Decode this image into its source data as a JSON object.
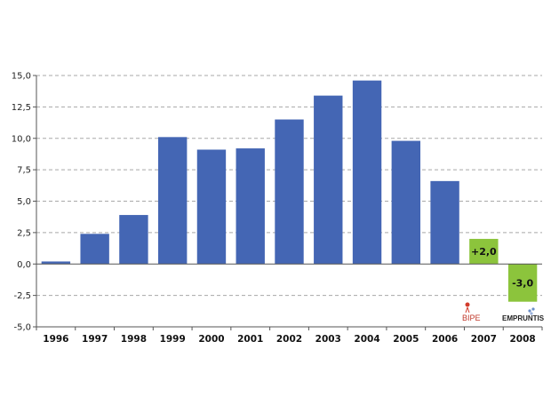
{
  "chart_data": {
    "type": "bar",
    "title": "",
    "xlabel": "",
    "ylabel": "",
    "ylim": [
      -5,
      15
    ],
    "yticks": [
      "-5,0",
      "-2,5",
      "0,0",
      "2,5",
      "5,0",
      "7,5",
      "10,0",
      "12,5",
      "15,0"
    ],
    "grid": true,
    "categories": [
      "1996",
      "1997",
      "1998",
      "1999",
      "2000",
      "2001",
      "2002",
      "2003",
      "2004",
      "2005",
      "2006",
      "2007",
      "2008"
    ],
    "values": [
      0.2,
      2.4,
      3.9,
      10.1,
      9.1,
      9.2,
      11.5,
      13.4,
      14.6,
      9.8,
      6.6,
      2.0,
      -3.0
    ],
    "bar_colors": [
      "#4466b4",
      "#4466b4",
      "#4466b4",
      "#4466b4",
      "#4466b4",
      "#4466b4",
      "#4466b4",
      "#4466b4",
      "#4466b4",
      "#4466b4",
      "#4466b4",
      "#8cc43c",
      "#8cc43c"
    ],
    "data_labels": [
      "",
      "",
      "",
      "",
      "",
      "",
      "",
      "",
      "",
      "",
      "",
      "+2,0",
      "-3,0"
    ]
  },
  "logos": {
    "bipe": "BIPE",
    "empruntis": "EMPRUNTIS"
  }
}
